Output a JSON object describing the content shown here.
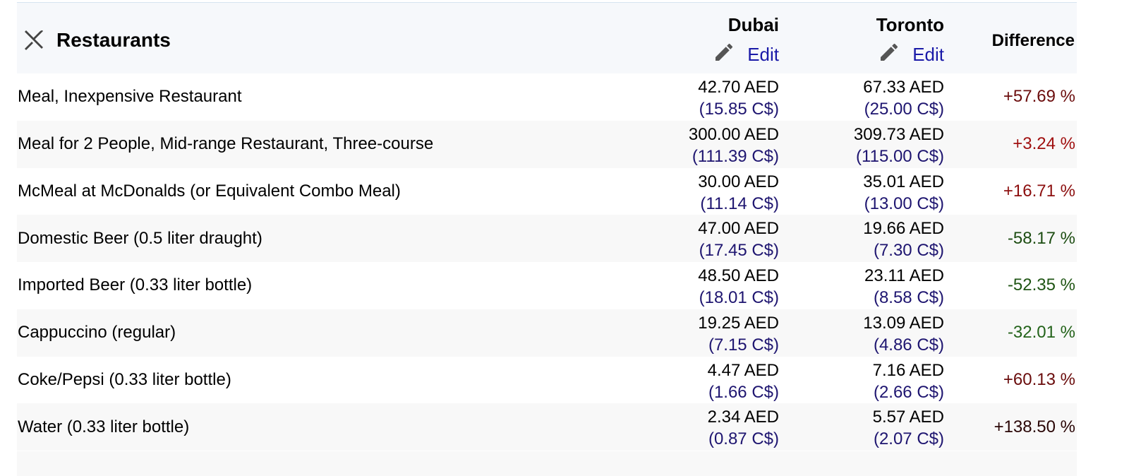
{
  "table": {
    "header": {
      "title": "Restaurants",
      "city1": "Dubai",
      "city2": "Toronto",
      "edit1": "Edit",
      "edit2": "Edit",
      "difference": "Difference"
    },
    "rows": [
      {
        "name": "Meal, Inexpensive Restaurant",
        "dubai": "42.70 AED",
        "dubai_cad": "(15.85 C$)",
        "toronto": "67.33 AED",
        "toronto_cad": "(25.00 C$)",
        "difference": "+57.69 %",
        "color": "#6b0c0c"
      },
      {
        "name": "Meal for 2 People, Mid-range Restaurant, Three-course",
        "dubai": "300.00 AED",
        "dubai_cad": "(111.39 C$)",
        "toronto": "309.73 AED",
        "toronto_cad": "(115.00 C$)",
        "difference": "+3.24 %",
        "color": "#a01010"
      },
      {
        "name": "McMeal at McDonalds (or Equivalent Combo Meal)",
        "dubai": "30.00 AED",
        "dubai_cad": "(11.14 C$)",
        "toronto": "35.01 AED",
        "toronto_cad": "(13.00 C$)",
        "difference": "+16.71 %",
        "color": "#8c0e0e"
      },
      {
        "name": "Domestic Beer (0.5 liter draught)",
        "dubai": "47.00 AED",
        "dubai_cad": "(17.45 C$)",
        "toronto": "19.66 AED",
        "toronto_cad": "(7.30 C$)",
        "difference": "-58.17 %",
        "color": "#1d4d12"
      },
      {
        "name": "Imported Beer (0.33 liter bottle)",
        "dubai": "48.50 AED",
        "dubai_cad": "(18.01 C$)",
        "toronto": "23.11 AED",
        "toronto_cad": "(8.58 C$)",
        "difference": "-52.35 %",
        "color": "#1f5514"
      },
      {
        "name": "Cappuccino (regular)",
        "dubai": "19.25 AED",
        "dubai_cad": "(7.15 C$)",
        "toronto": "13.09 AED",
        "toronto_cad": "(4.86 C$)",
        "difference": "-32.01 %",
        "color": "#23631a"
      },
      {
        "name": "Coke/Pepsi (0.33 liter bottle)",
        "dubai": "4.47 AED",
        "dubai_cad": "(1.66 C$)",
        "toronto": "7.16 AED",
        "toronto_cad": "(2.66 C$)",
        "difference": "+60.13 %",
        "color": "#6a0c0c"
      },
      {
        "name": "Water (0.33 liter bottle)",
        "dubai": "2.34 AED",
        "dubai_cad": "(0.87 C$)",
        "toronto": "5.57 AED",
        "toronto_cad": "(2.07 C$)",
        "difference": "+138.50 %",
        "color": "#2a0606"
      }
    ]
  }
}
